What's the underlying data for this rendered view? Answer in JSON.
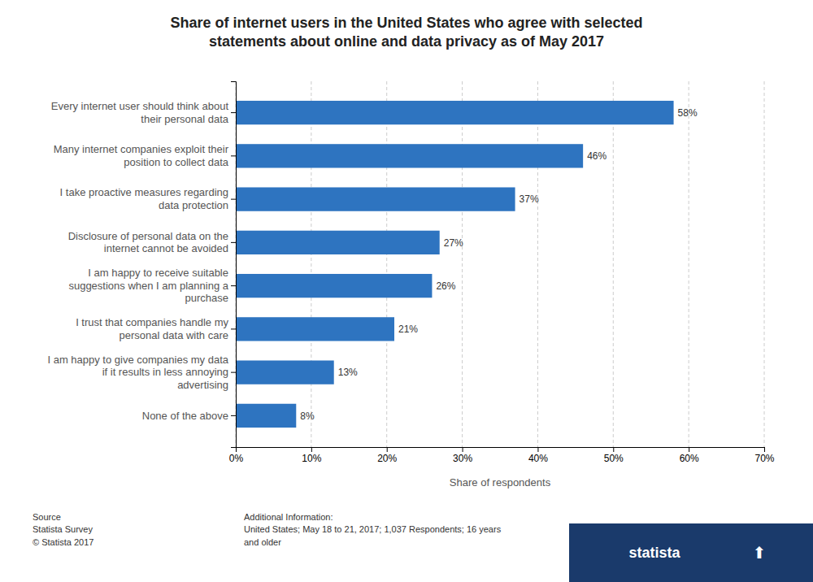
{
  "chart_data": {
    "type": "bar",
    "orientation": "horizontal",
    "title": "Share of internet users in the United States who agree with selected\nstatements about online and data privacy as of May 2017",
    "categories": [
      "Every internet user should think about\ntheir personal data",
      "Many internet companies exploit their\nposition to collect data",
      "I take proactive measures regarding\ndata protection",
      "Disclosure of personal data on the\ninternet cannot be avoided",
      "I am happy to receive suitable\nsuggestions when I am planning a\npurchase",
      "I trust that companies handle my\npersonal data with care",
      "I am happy to give companies my data\nif it results in less annoying\nadvertising",
      "None of the above"
    ],
    "values": [
      58,
      46,
      37,
      27,
      26,
      21,
      13,
      8
    ],
    "value_labels": [
      "58%",
      "46%",
      "37%",
      "27%",
      "26%",
      "21%",
      "13%",
      "8%"
    ],
    "data_labels": true,
    "color": "#2e74c0",
    "xlabel": "Share of respondents",
    "xlim": [
      0,
      70
    ],
    "xticks": [
      {
        "value": 0,
        "label": "0%"
      },
      {
        "value": 10,
        "label": "10%"
      },
      {
        "value": 20,
        "label": "20%"
      },
      {
        "value": 30,
        "label": "30%"
      },
      {
        "value": 40,
        "label": "40%"
      },
      {
        "value": 50,
        "label": "50%"
      },
      {
        "value": 60,
        "label": "60%"
      },
      {
        "value": 70,
        "label": "70%"
      }
    ],
    "grid": true,
    "annotations": [
      "Source\nStatista Survey\n© Statista 2017",
      "Additional Information:\nUnited States; May 18 to 21, 2017; 1,037 Respondents; 16 years\nand older",
      "statista",
      "⬆"
    ]
  }
}
